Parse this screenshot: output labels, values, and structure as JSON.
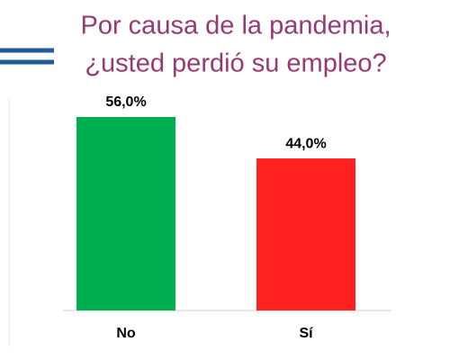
{
  "chart_data": {
    "type": "bar",
    "title": [
      "Por causa de la pandemia,",
      "¿usted perdió su empleo?"
    ],
    "categories": [
      "No",
      "Sí"
    ],
    "values": [
      56,
      44
    ],
    "value_labels": [
      "56,0%",
      "44,0%"
    ],
    "colors": [
      "#00b050",
      "#ff2020"
    ]
  }
}
